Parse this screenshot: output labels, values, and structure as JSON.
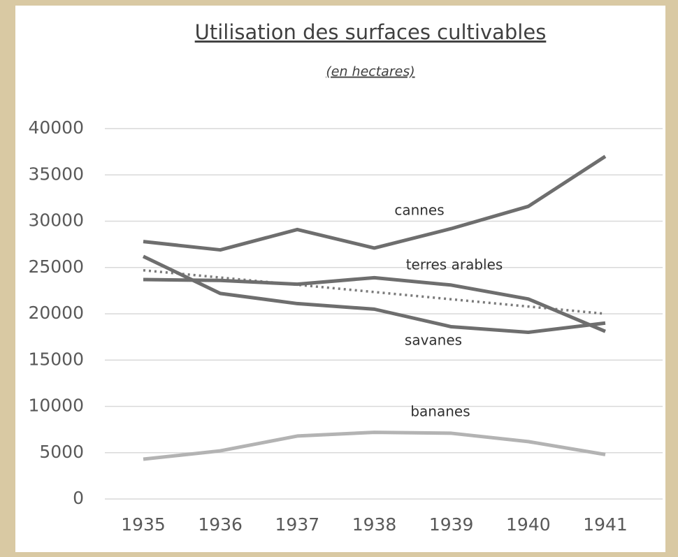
{
  "chart_data": {
    "type": "line",
    "title": "Utilisation des surfaces cultivables",
    "subtitle": "(en hectares)",
    "categories": [
      "1935",
      "1936",
      "1937",
      "1938",
      "1939",
      "1940",
      "1941"
    ],
    "series": [
      {
        "name": "cannes",
        "color": "#6e6e6e",
        "values": [
          27800,
          26900,
          29100,
          27100,
          29200,
          31600,
          37000
        ]
      },
      {
        "name": "terres arables",
        "color": "#6e6e6e",
        "values": [
          23700,
          23600,
          23200,
          23900,
          23100,
          21600,
          18100
        ]
      },
      {
        "name": "savanes",
        "color": "#6e6e6e",
        "values": [
          26200,
          22200,
          21100,
          20500,
          18600,
          18000,
          19000
        ]
      },
      {
        "name": "bananes",
        "color": "#b3b3b3",
        "values": [
          4300,
          5200,
          6800,
          7200,
          7100,
          6200,
          4800
        ]
      }
    ],
    "trendline": {
      "start": 24700,
      "end": 20000,
      "color": "#7a7a7a",
      "style": "dotted"
    },
    "ylim": [
      0,
      40000
    ],
    "yticks": [
      0,
      5000,
      10000,
      15000,
      20000,
      25000,
      30000,
      35000,
      40000
    ],
    "grid": true
  }
}
